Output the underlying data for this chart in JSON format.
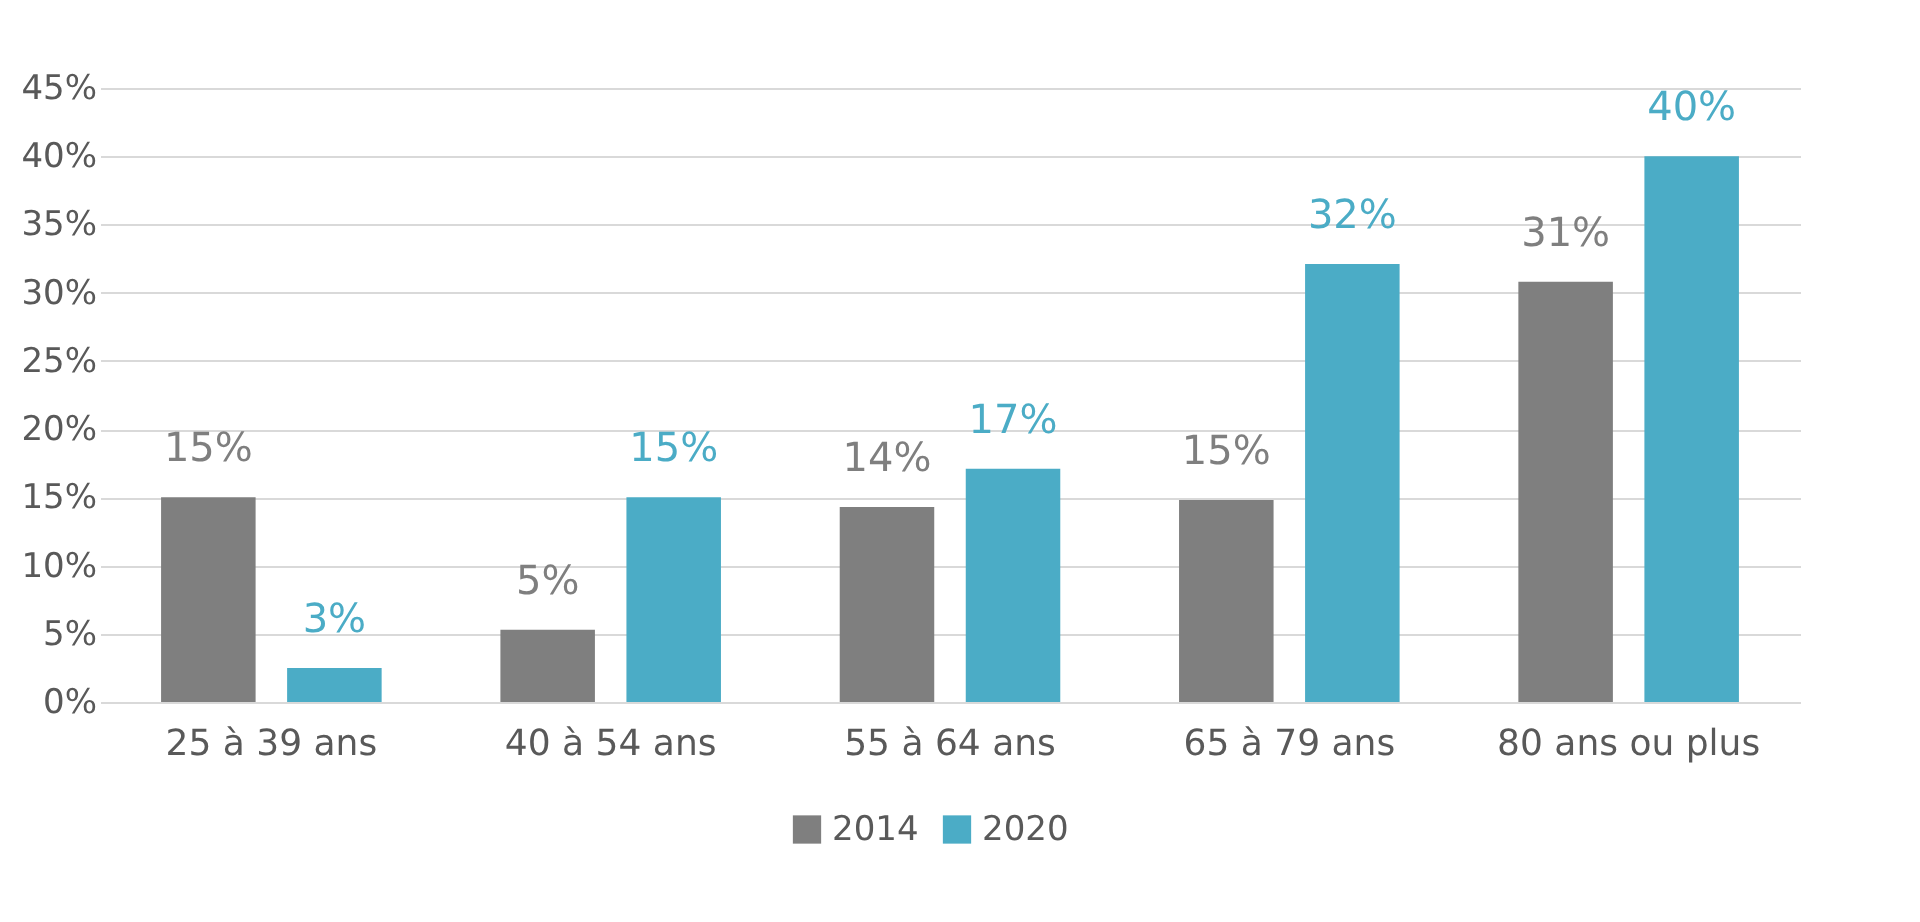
{
  "chart_data": {
    "type": "bar",
    "categories": [
      "25 à 39 ans",
      "40 à 54 ans",
      "55 à 64 ans",
      "65 à 79 ans",
      "80 ans ou plus"
    ],
    "series": [
      {
        "name": "2014",
        "color": "#7f7f7f",
        "values": [
          15,
          5.3,
          14.3,
          14.8,
          30.8
        ],
        "value_labels": [
          "15%",
          "5%",
          "14%",
          "15%",
          "31%"
        ]
      },
      {
        "name": "2020",
        "color": "#4bacc6",
        "values": [
          2.5,
          15,
          17.1,
          32.1,
          40
        ],
        "value_labels": [
          "3%",
          "15%",
          "17%",
          "32%",
          "40%"
        ]
      }
    ],
    "ylim": [
      0,
      45
    ],
    "yticks": [
      {
        "value": 0,
        "label": "0%"
      },
      {
        "value": 5,
        "label": "5%"
      },
      {
        "value": 10,
        "label": "10%"
      },
      {
        "value": 15,
        "label": "15%"
      },
      {
        "value": 20,
        "label": "20%"
      },
      {
        "value": 25,
        "label": "25%"
      },
      {
        "value": 30,
        "label": "30%"
      },
      {
        "value": 35,
        "label": "35%"
      },
      {
        "value": 40,
        "label": "40%"
      },
      {
        "value": 45,
        "label": "45%"
      }
    ],
    "grid": "y",
    "legend": "bottom"
  }
}
